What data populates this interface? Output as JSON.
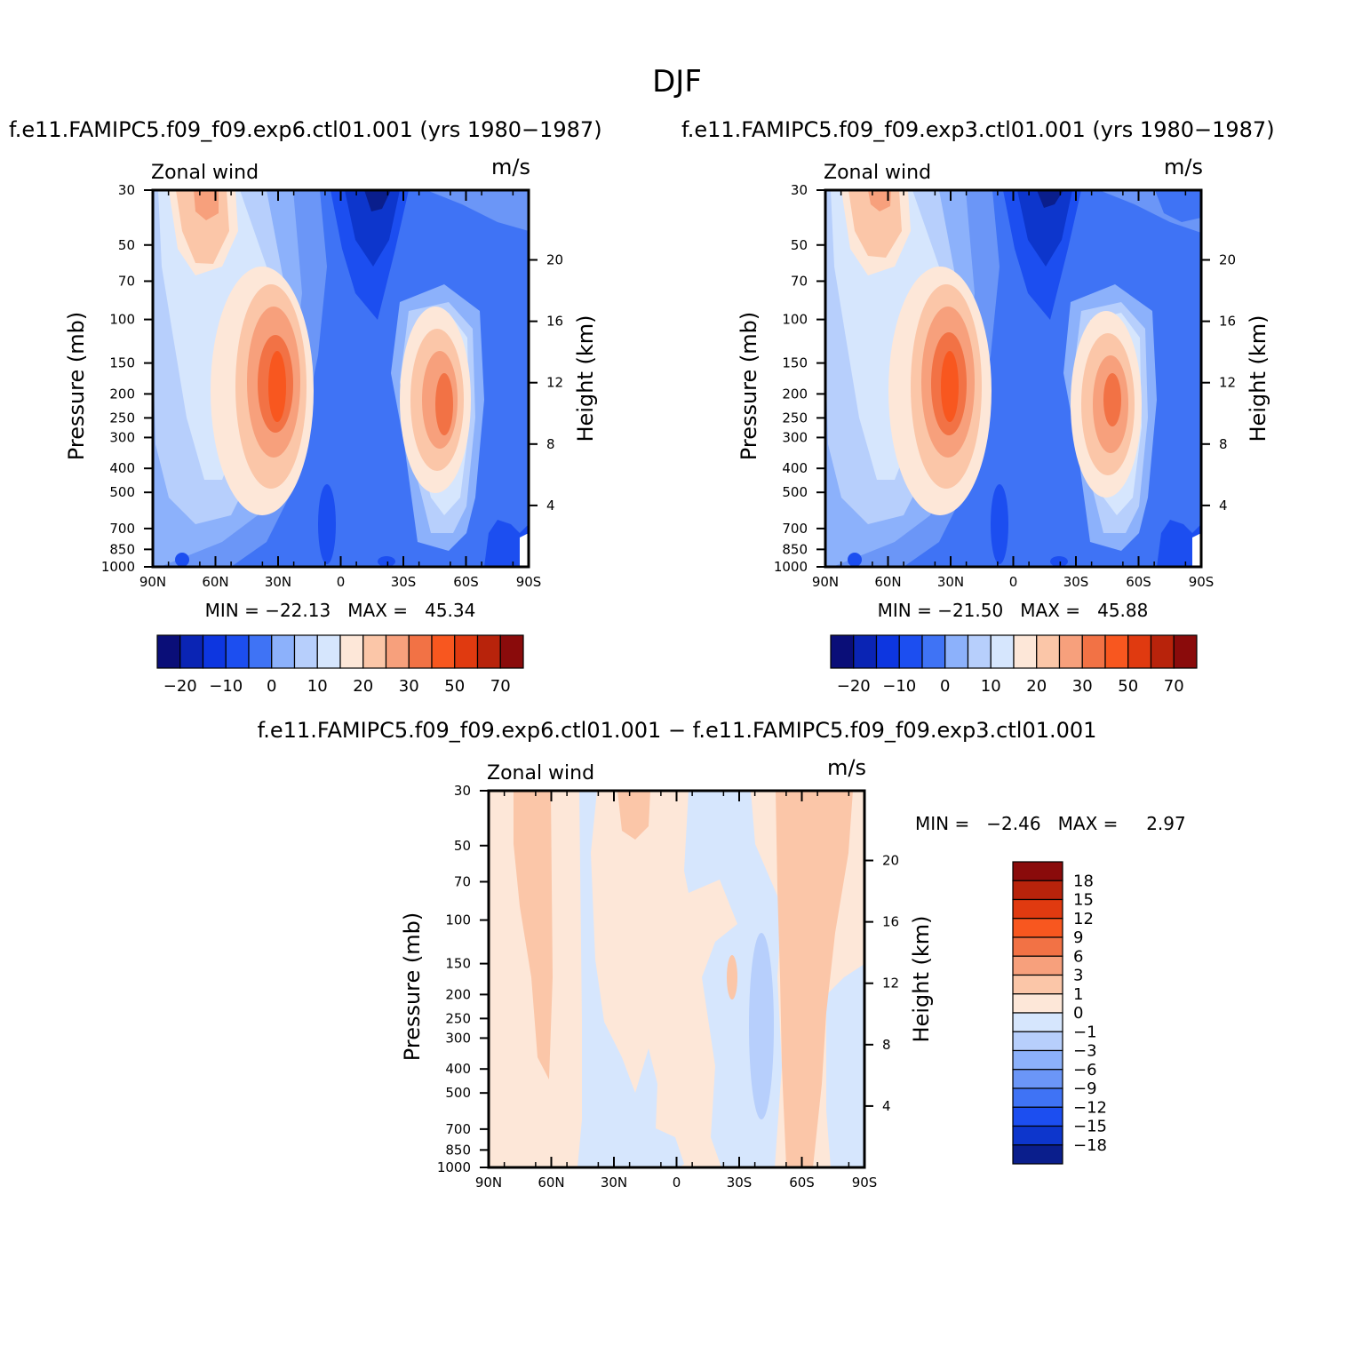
{
  "title": "DJF",
  "panels": {
    "left": {
      "case": "f.e11.FAMIPC5.f09_f09.exp6.ctl01.001 (yrs 1980−1987)",
      "var_label": "Zonal wind",
      "units": "m/s",
      "min_max": "MIN = −22.13   MAX =   45.34"
    },
    "right": {
      "case": "f.e11.FAMIPC5.f09_f09.exp3.ctl01.001 (yrs 1980−1987)",
      "var_label": "Zonal wind",
      "units": "m/s",
      "min_max": "MIN = −21.50   MAX =   45.88"
    },
    "diff": {
      "case": "f.e11.FAMIPC5.f09_f09.exp6.ctl01.001 − f.e11.FAMIPC5.f09_f09.exp3.ctl01.001",
      "var_label": "Zonal wind",
      "units": "m/s",
      "min_max": "MIN =   −2.46   MAX =     2.97"
    }
  },
  "chart_data": [
    {
      "type": "heatmap",
      "title": "f.e11.FAMIPC5.f09_f09.exp6.ctl01.001 (yrs 1980−1987)",
      "ylabel": "Pressure (mb)",
      "y2label": "Height (km)",
      "xticks": [
        "90N",
        "60N",
        "30N",
        "0",
        "30S",
        "60S",
        "90S"
      ],
      "yticks": [
        30,
        50,
        70,
        100,
        150,
        200,
        250,
        300,
        400,
        500,
        700,
        850,
        1000
      ],
      "y2ticks": [
        4,
        8,
        12,
        16,
        20
      ],
      "legend_labels": [
        "−20",
        "−10",
        "0",
        "10",
        "20",
        "30",
        "50",
        "70"
      ],
      "min": -22.13,
      "max": 45.34,
      "features": [
        {
          "lat": 30,
          "p": 180,
          "value": 45,
          "desc": "NH subtropical jet"
        },
        {
          "lat": -45,
          "p": 220,
          "value": 35,
          "desc": "SH jet"
        },
        {
          "lat": -18,
          "p": 30,
          "value": -22,
          "desc": "tropical easterlies aloft"
        }
      ]
    },
    {
      "type": "heatmap",
      "title": "f.e11.FAMIPC5.f09_f09.exp3.ctl01.001 (yrs 1980−1987)",
      "ylabel": "Pressure (mb)",
      "y2label": "Height (km)",
      "xticks": [
        "90N",
        "60N",
        "30N",
        "0",
        "30S",
        "60S",
        "90S"
      ],
      "yticks": [
        30,
        50,
        70,
        100,
        150,
        200,
        250,
        300,
        400,
        500,
        700,
        850,
        1000
      ],
      "y2ticks": [
        4,
        8,
        12,
        16,
        20
      ],
      "legend_labels": [
        "−20",
        "−10",
        "0",
        "10",
        "20",
        "30",
        "50",
        "70"
      ],
      "min": -21.5,
      "max": 45.88,
      "features": [
        {
          "lat": 30,
          "p": 180,
          "value": 45,
          "desc": "NH subtropical jet"
        },
        {
          "lat": -45,
          "p": 220,
          "value": 35,
          "desc": "SH jet"
        },
        {
          "lat": -18,
          "p": 30,
          "value": -21,
          "desc": "tropical easterlies aloft"
        }
      ]
    },
    {
      "type": "heatmap",
      "title": "f.e11.FAMIPC5.f09_f09.exp6.ctl01.001 − f.e11.FAMIPC5.f09_f09.exp3.ctl01.001",
      "ylabel": "Pressure (mb)",
      "y2label": "Height (km)",
      "xticks": [
        "90N",
        "60N",
        "30N",
        "0",
        "30S",
        "60S",
        "90S"
      ],
      "yticks": [
        30,
        50,
        70,
        100,
        150,
        200,
        250,
        300,
        400,
        500,
        700,
        850,
        1000
      ],
      "y2ticks": [
        4,
        8,
        12,
        16,
        20
      ],
      "legend_labels": [
        "18",
        "15",
        "12",
        "9",
        "6",
        "3",
        "1",
        "0",
        "−1",
        "−3",
        "−6",
        "−9",
        "−12",
        "−15",
        "−18"
      ],
      "min": -2.46,
      "max": 2.97
    }
  ]
}
